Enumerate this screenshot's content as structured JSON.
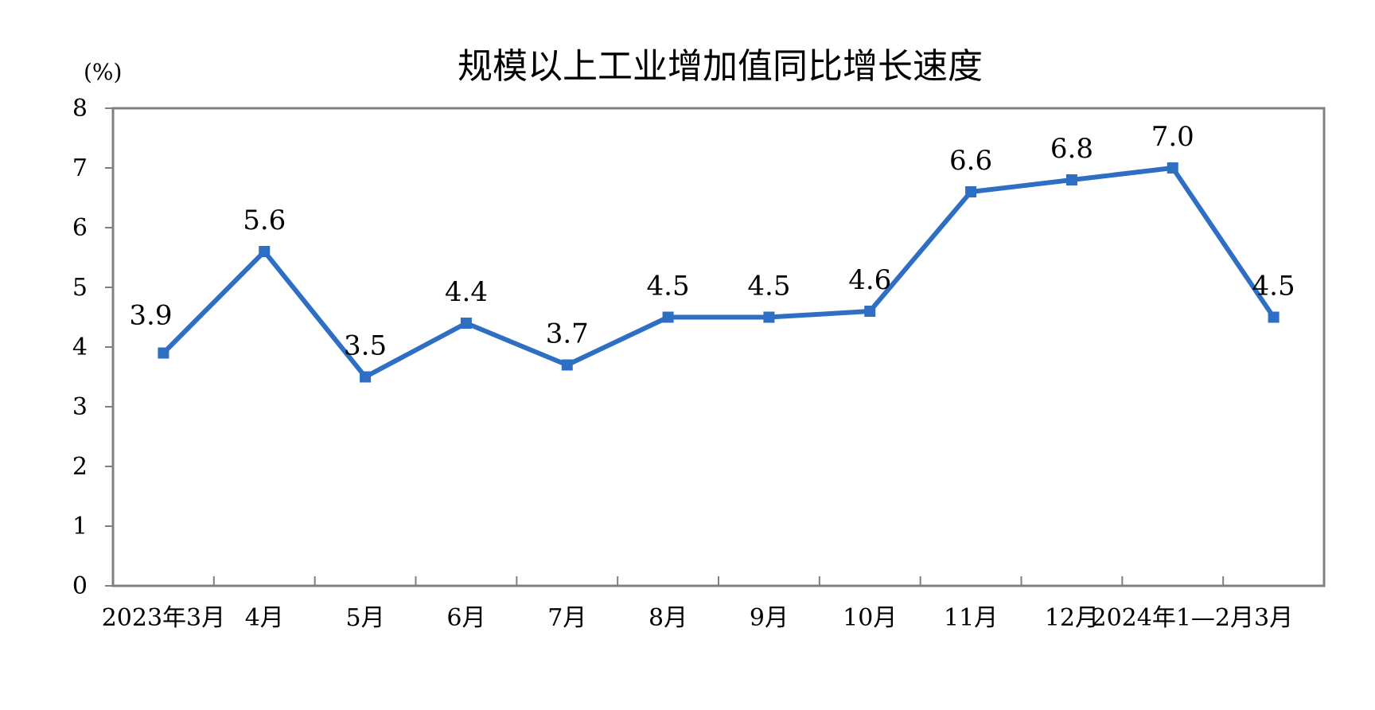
{
  "chart_data": {
    "type": "line",
    "title": "规模以上工业增加值同比增长速度",
    "unit_label": "(%)",
    "xlabel": "",
    "ylabel": "",
    "ylim": [
      0,
      8
    ],
    "y_ticks": [
      "0",
      "1",
      "2",
      "3",
      "4",
      "5",
      "6",
      "7",
      "8"
    ],
    "categories": [
      "2023年3月",
      "4月",
      "5月",
      "6月",
      "7月",
      "8月",
      "9月",
      "10月",
      "11月",
      "12月",
      "2024年1—2月",
      "3月"
    ],
    "values": [
      3.9,
      5.6,
      3.5,
      4.4,
      3.7,
      4.5,
      4.5,
      4.6,
      6.6,
      6.8,
      7.0,
      4.5
    ],
    "data_labels": [
      "3.9",
      "5.6",
      "3.5",
      "4.4",
      "3.7",
      "4.5",
      "4.5",
      "4.6",
      "6.6",
      "6.8",
      "7.0",
      "4.5"
    ],
    "grid": false,
    "legend": "none",
    "colors": {
      "line": "#2e6fc3",
      "axis": "#808080",
      "text": "#000000"
    }
  }
}
